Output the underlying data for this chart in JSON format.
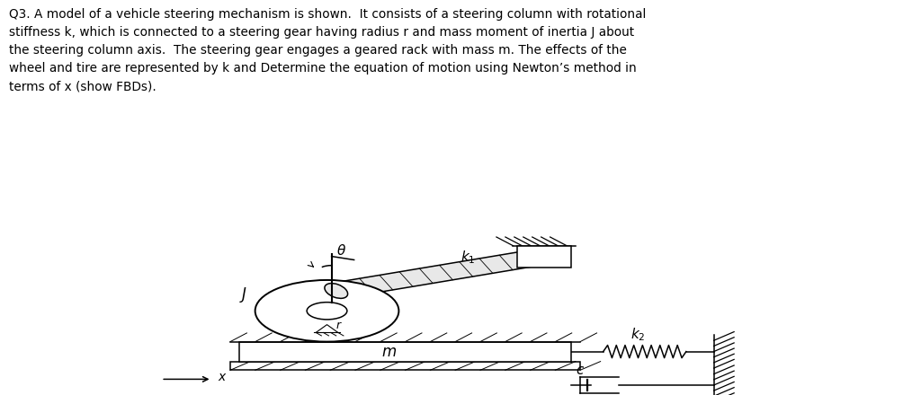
{
  "title_text": "Q3. A model of a vehicle steering mechanism is shown.  It consists of a steering column with rotational\nstiffness k, which is connected to a steering gear having radius r and mass moment of inertia J about\nthe steering column axis.  The steering gear engages a geared rack with mass m. The effects of the\nwheel and tire are represented by k and Determine the equation of motion using Newton’s method in\nterms of x (show FBDs).",
  "bg_color": "#ffffff",
  "text_color": "#000000",
  "line_color": "#000000",
  "fig_width": 10.24,
  "fig_height": 4.4,
  "dpi": 100
}
